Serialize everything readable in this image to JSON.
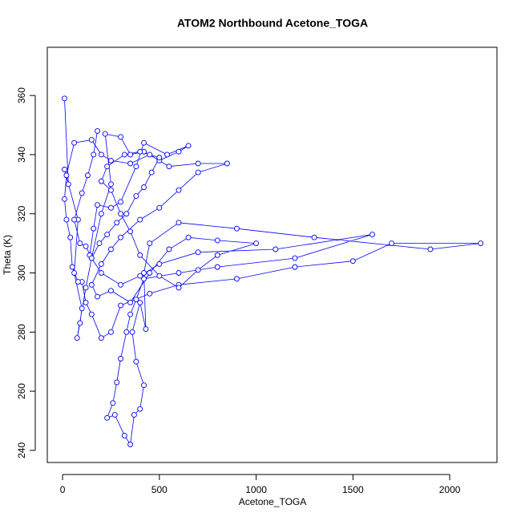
{
  "chart_data": {
    "type": "line",
    "title": "ATOM2 Northbound Acetone_TOGA",
    "x_label": "Acetone_TOGA",
    "y_label": "Theta (K)",
    "color": "#0000ff",
    "markers": "open-circle",
    "xlim": [
      -79,
      2244
    ],
    "ylim": [
      235.9,
      376.3
    ],
    "xticks": [
      0,
      500,
      1000,
      1500,
      2000
    ],
    "yticks": [
      240,
      260,
      280,
      300,
      320,
      340,
      360
    ],
    "x": [
      10,
      30,
      10,
      80,
      60,
      100,
      90,
      75,
      120,
      150,
      200,
      250,
      220,
      300,
      350,
      420,
      500,
      600,
      650,
      540,
      420,
      380,
      300,
      250,
      180,
      160,
      140,
      200,
      300,
      400,
      500,
      700,
      1100,
      1600,
      1200,
      800,
      600,
      420,
      380,
      350,
      330,
      300,
      280,
      260,
      230,
      270,
      320,
      350,
      370,
      400,
      420,
      380,
      360,
      400,
      430,
      420,
      450,
      600,
      900,
      1300,
      1900,
      2160,
      1700,
      1500,
      1200,
      900,
      600,
      450,
      300,
      250,
      200,
      150,
      120,
      100,
      80,
      50,
      40,
      20,
      10,
      20,
      60,
      150,
      200,
      250,
      350,
      450,
      550,
      700,
      850,
      700,
      600,
      500,
      400,
      300,
      250,
      200,
      150,
      180,
      250,
      350,
      450,
      550,
      650,
      800,
      1000,
      800,
      700,
      600,
      500,
      400,
      350,
      300,
      250,
      200,
      230,
      320,
      400,
      500,
      460,
      420,
      380,
      330,
      280,
      230,
      190,
      150,
      120,
      90,
      60,
      100,
      130,
      160,
      180
    ],
    "values": [
      359,
      330,
      335,
      318,
      300,
      288,
      283,
      278,
      295,
      305,
      320,
      330,
      347,
      346,
      340,
      341,
      338,
      341,
      343,
      340,
      344,
      336,
      324,
      322,
      323,
      315,
      306,
      300,
      296,
      299,
      303,
      307,
      308,
      313,
      305,
      302,
      300,
      298,
      291,
      286,
      280,
      271,
      263,
      256,
      251,
      252,
      245,
      242,
      252,
      254,
      262,
      270,
      280,
      290,
      281,
      300,
      310,
      317,
      315,
      312,
      308,
      310,
      310,
      304,
      302,
      298,
      296,
      293,
      289,
      280,
      278,
      286,
      290,
      297,
      297,
      302,
      312,
      318,
      325,
      333,
      344,
      345,
      340,
      338,
      337,
      340,
      336,
      337,
      337,
      334,
      328,
      322,
      318,
      312,
      308,
      303,
      296,
      292,
      294,
      290,
      300,
      308,
      312,
      311,
      310,
      306,
      301,
      295,
      299,
      306,
      314,
      320,
      328,
      331,
      336,
      340,
      341,
      339,
      334,
      329,
      326,
      320,
      317,
      313,
      310,
      305,
      309,
      310,
      318,
      327,
      333,
      340,
      348
    ]
  }
}
